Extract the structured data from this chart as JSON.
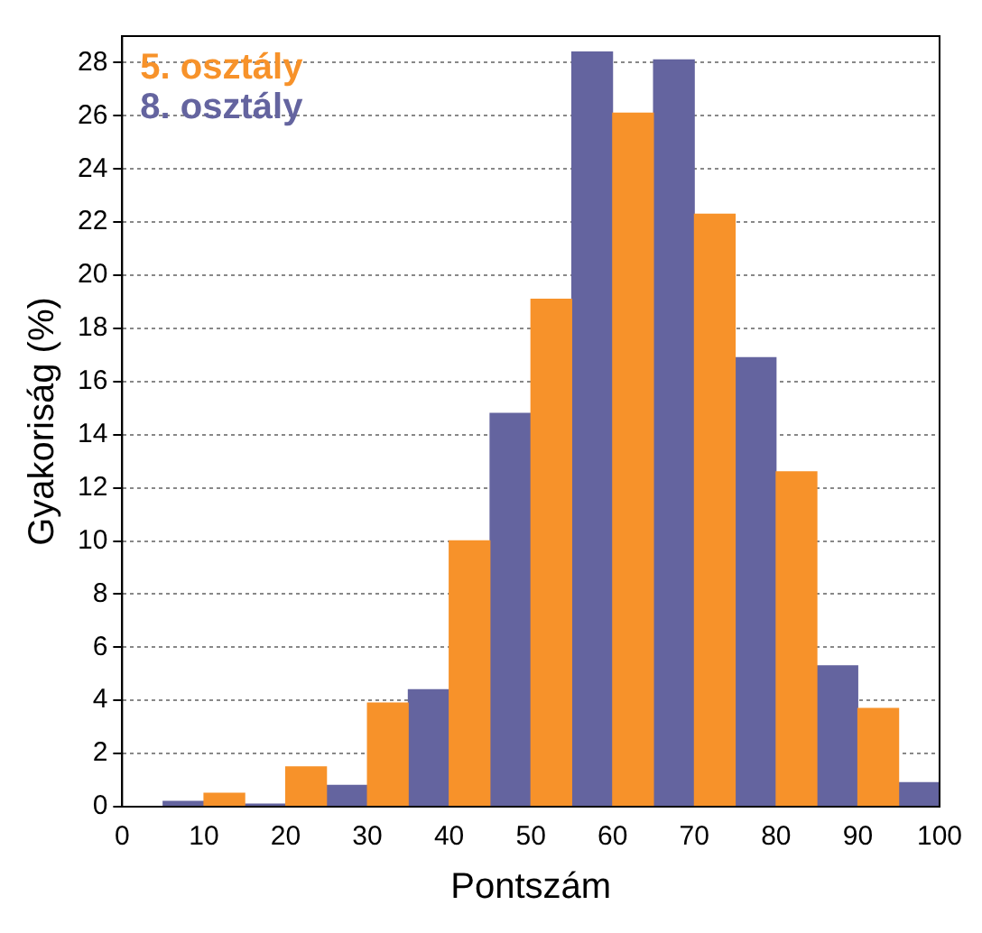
{
  "chart_data": {
    "type": "bar",
    "xlabel": "Pontszám",
    "ylabel": "Gyakoriság (%)",
    "series": [
      {
        "name": "5. osztály",
        "color": "#f7922a",
        "x": [
          12.5,
          22.5,
          32.5,
          42.5,
          52.5,
          62.5,
          72.5,
          82.5,
          92.5
        ],
        "values": [
          0.5,
          1.5,
          3.9,
          10.0,
          19.1,
          26.1,
          22.3,
          12.6,
          3.7
        ]
      },
      {
        "name": "8. osztály",
        "color": "#64649f",
        "x": [
          7.5,
          17.5,
          27.5,
          37.5,
          47.5,
          57.5,
          67.5,
          77.5,
          87.5,
          97.5
        ],
        "values": [
          0.2,
          0.1,
          0.8,
          4.4,
          14.8,
          28.4,
          28.1,
          16.9,
          5.3,
          0.9
        ]
      }
    ],
    "xlim": [
      0,
      100
    ],
    "xticks": [
      0,
      10,
      20,
      30,
      40,
      50,
      60,
      70,
      80,
      90,
      100
    ],
    "ylim": [
      0,
      29
    ],
    "yticks": [
      0,
      2,
      4,
      6,
      8,
      10,
      12,
      14,
      16,
      18,
      20,
      22,
      24,
      26,
      28
    ],
    "grid": "y",
    "legend": "top left"
  }
}
